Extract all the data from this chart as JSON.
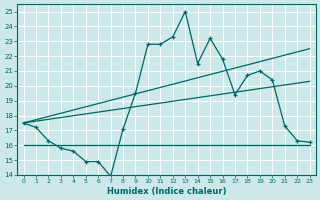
{
  "xlabel": "Humidex (Indice chaleur)",
  "ylabel": "",
  "bg_color": "#cce8e8",
  "grid_color": "#ffffff",
  "line_color": "#006666",
  "xlim": [
    -0.5,
    23.5
  ],
  "ylim": [
    14,
    25.5
  ],
  "xticks": [
    0,
    1,
    2,
    3,
    4,
    5,
    6,
    7,
    8,
    9,
    10,
    11,
    12,
    13,
    14,
    15,
    16,
    17,
    18,
    19,
    20,
    21,
    22,
    23
  ],
  "yticks": [
    14,
    15,
    16,
    17,
    18,
    19,
    20,
    21,
    22,
    23,
    24,
    25
  ],
  "series1_x": [
    0,
    1,
    2,
    3,
    4,
    5,
    6,
    7,
    8,
    9,
    10,
    11,
    12,
    13,
    14,
    15,
    16,
    17,
    18,
    19,
    20,
    21,
    22,
    23
  ],
  "series1_y": [
    17.5,
    17.2,
    16.3,
    15.8,
    15.6,
    14.9,
    14.9,
    13.9,
    17.1,
    19.5,
    22.8,
    22.8,
    23.3,
    25.0,
    21.5,
    23.2,
    21.8,
    19.4,
    20.7,
    21.0,
    20.4,
    17.3,
    16.3,
    16.2
  ],
  "line1_x": [
    0,
    23
  ],
  "line1_y": [
    16.0,
    16.0
  ],
  "line2_x": [
    0,
    23
  ],
  "line2_y": [
    17.5,
    20.3
  ],
  "line3_x": [
    0,
    23
  ],
  "line3_y": [
    17.5,
    22.5
  ]
}
